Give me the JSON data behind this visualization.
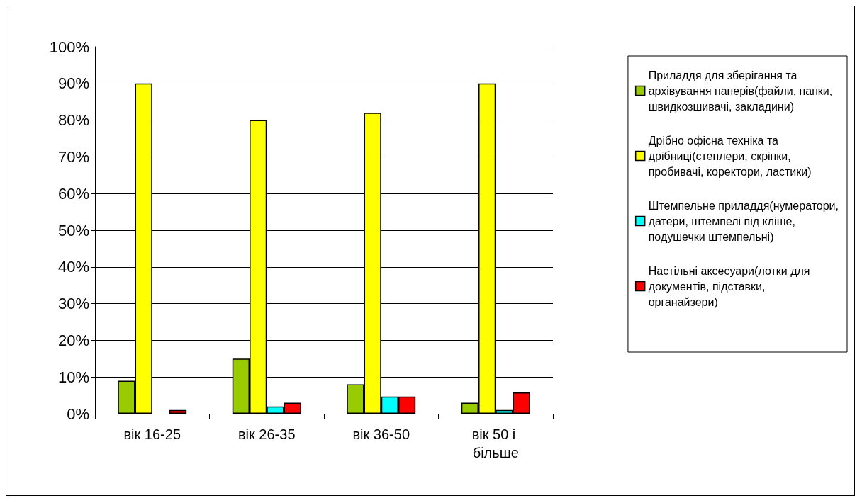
{
  "chart_data": {
    "type": "bar",
    "categories": [
      "вік 16-25",
      "вік 26-35",
      "вік 36-50",
      "вік 50 і більше"
    ],
    "series": [
      {
        "name": "Приладдя для зберігання та архівування паперів(файли, папки, швидкозшивачі, закладини)",
        "color": "#99cc00",
        "values": [
          9,
          15,
          8,
          3
        ]
      },
      {
        "name": "Дрібно офісна техніка та дрібниці(степлери, скріпки, пробивачі, коректори, ластики)",
        "color": "#ffff00",
        "values": [
          90,
          80,
          82,
          90
        ]
      },
      {
        "name": "Штемпельне приладдя(нумератори, датери, штемпелі під кліше, подушечки штемпельні)",
        "color": "#00ffff",
        "values": [
          null,
          2,
          4.7,
          1
        ]
      },
      {
        "name": "Настільні аксесуари(лотки для документів, підставки, органайзери)",
        "color": "#ff0000",
        "values": [
          1,
          3,
          4.7,
          5.8
        ]
      }
    ],
    "ylim": [
      0,
      100
    ],
    "yticks": [
      {
        "value": 0,
        "label": "0%"
      },
      {
        "value": 10,
        "label": "10%"
      },
      {
        "value": 20,
        "label": "20%"
      },
      {
        "value": 30,
        "label": "30%"
      },
      {
        "value": 40,
        "label": "40%"
      },
      {
        "value": 50,
        "label": "50%"
      },
      {
        "value": 60,
        "label": "60%"
      },
      {
        "value": 70,
        "label": "70%"
      },
      {
        "value": 80,
        "label": "80%"
      },
      {
        "value": 90,
        "label": "90%"
      },
      {
        "value": 100,
        "label": "100%"
      }
    ],
    "grid": "y",
    "legend": "right"
  }
}
